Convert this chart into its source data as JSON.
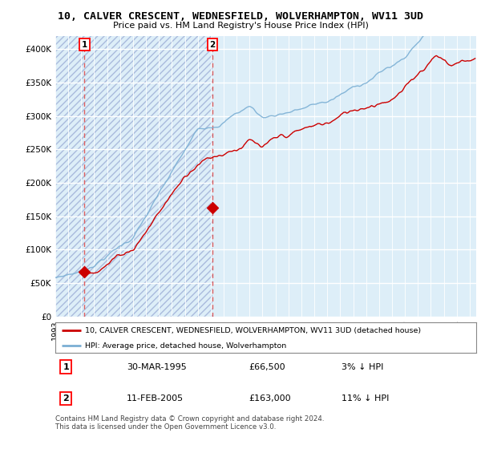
{
  "title": "10, CALVER CRESCENT, WEDNESFIELD, WOLVERHAMPTON, WV11 3UD",
  "subtitle": "Price paid vs. HM Land Registry's House Price Index (HPI)",
  "legend_line1": "10, CALVER CRESCENT, WEDNESFIELD, WOLVERHAMPTON, WV11 3UD (detached house)",
  "legend_line2": "HPI: Average price, detached house, Wolverhampton",
  "transaction1_label": "1",
  "transaction1_date": "30-MAR-1995",
  "transaction1_price": "£66,500",
  "transaction1_hpi": "3% ↓ HPI",
  "transaction2_label": "2",
  "transaction2_date": "11-FEB-2005",
  "transaction2_price": "£163,000",
  "transaction2_hpi": "11% ↓ HPI",
  "footer": "Contains HM Land Registry data © Crown copyright and database right 2024.\nThis data is licensed under the Open Government Licence v3.0.",
  "sale1_year": 1995.25,
  "sale1_value": 66500,
  "sale2_year": 2005.12,
  "sale2_value": 163000,
  "hpi_color": "#7bafd4",
  "price_color": "#cc0000",
  "dashed_color": "#e06060",
  "hatch_fill_color": "#ddeeff",
  "ylim_max": 420000,
  "ylim_min": 0,
  "xmin": 1993,
  "xmax": 2025.5
}
